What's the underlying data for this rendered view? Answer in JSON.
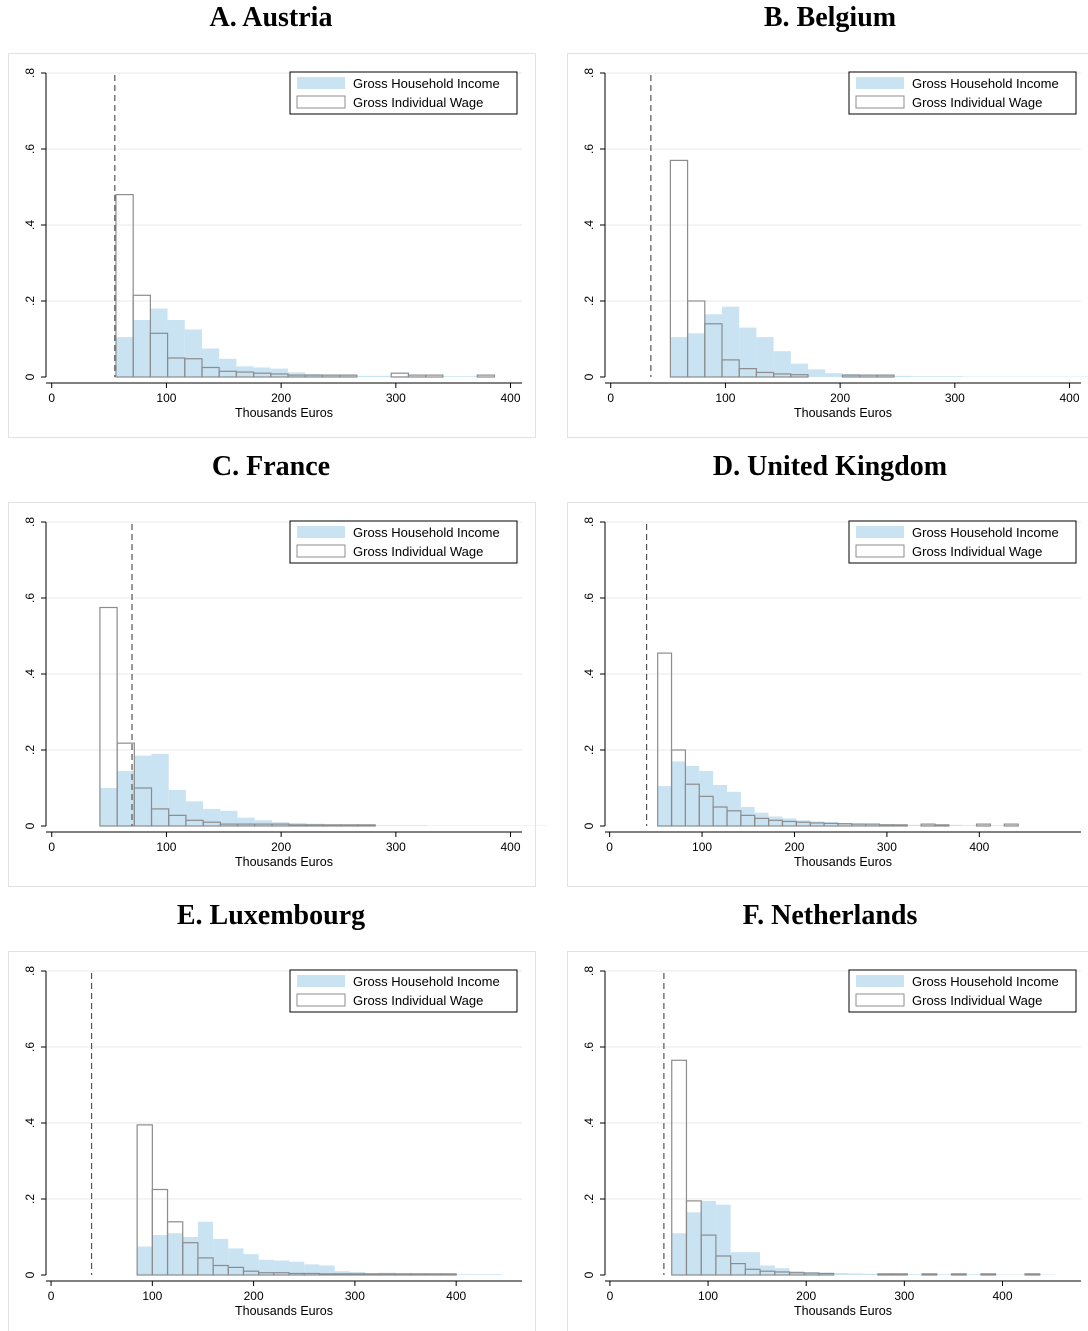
{
  "colors": {
    "household_fill": "#c9e3f3",
    "wage_stroke": "#8c8c8c",
    "grid": "#eaeaea",
    "frame": "#e2e2e2",
    "threshold": "#555555"
  },
  "chart_data": [
    {
      "type": "bar",
      "title": "A. Austria",
      "xlabel": "Thousands Euros",
      "ylabel": "",
      "xlim": [
        -5,
        410
      ],
      "ylim": [
        0,
        0.8
      ],
      "xticks": [
        0,
        100,
        200,
        300,
        400
      ],
      "xtick_labels": [
        "0",
        "100",
        "200",
        "300",
        "400"
      ],
      "yticks": [
        0,
        0.2,
        0.4,
        0.6,
        0.8
      ],
      "ytick_labels": [
        "0",
        ".2",
        ".4",
        ".6",
        ".8"
      ],
      "grid": true,
      "legend_position": "top-right",
      "threshold": 55,
      "bin_start": 56,
      "bin_width": 15,
      "series": [
        {
          "name": "Gross Household Income",
          "style": "filled",
          "values": [
            0.105,
            0.15,
            0.18,
            0.15,
            0.125,
            0.075,
            0.048,
            0.028,
            0.025,
            0.022,
            0.012,
            0.008,
            0.006,
            0.005,
            0.003,
            0.003,
            0.002,
            0.002,
            0.001,
            0.002,
            0.002
          ]
        },
        {
          "name": "Gross Individual Wage",
          "style": "outline",
          "values": [
            0.48,
            0.215,
            0.115,
            0.05,
            0.048,
            0.025,
            0.015,
            0.013,
            0.01,
            0.008,
            0.005,
            0.005,
            0.005,
            0.005,
            0,
            0,
            0.01,
            0.005,
            0.005,
            0,
            0,
            0.005
          ]
        }
      ]
    },
    {
      "type": "bar",
      "title": "B. Belgium",
      "xlabel": "Thousands Euros",
      "ylabel": "",
      "xlim": [
        -5,
        410
      ],
      "ylim": [
        0,
        0.8
      ],
      "xticks": [
        0,
        100,
        200,
        300,
        400
      ],
      "xtick_labels": [
        "0",
        "100",
        "200",
        "300",
        "400"
      ],
      "yticks": [
        0,
        0.2,
        0.4,
        0.6,
        0.8
      ],
      "ytick_labels": [
        "0",
        ".2",
        ".4",
        ".6",
        ".8"
      ],
      "grid": true,
      "legend_position": "top-right",
      "threshold": 35,
      "bin_start": 52,
      "bin_width": 15,
      "series": [
        {
          "name": "Gross Household Income",
          "style": "filled",
          "values": [
            0.105,
            0.115,
            0.165,
            0.185,
            0.13,
            0.105,
            0.068,
            0.035,
            0.02,
            0.01,
            0.008,
            0.006,
            0.005,
            0.003,
            0.002,
            0.002,
            0.002,
            0.001,
            0.001,
            0.001,
            0.001,
            0.001,
            0.001,
            0.001,
            0.001,
            0.001,
            0.001,
            0.001,
            0.001,
            0.004
          ]
        },
        {
          "name": "Gross Individual Wage",
          "style": "outline",
          "values": [
            0.57,
            0.2,
            0.14,
            0.045,
            0.022,
            0.012,
            0.008,
            0.006,
            0,
            0,
            0.005,
            0.005,
            0.005
          ]
        }
      ]
    },
    {
      "type": "bar",
      "title": "C. France",
      "xlabel": "Thousands Euros",
      "ylabel": "",
      "xlim": [
        -5,
        410
      ],
      "ylim": [
        0,
        0.8
      ],
      "xticks": [
        0,
        100,
        200,
        300,
        400
      ],
      "xtick_labels": [
        "0",
        "100",
        "200",
        "300",
        "400"
      ],
      "yticks": [
        0,
        0.2,
        0.4,
        0.6,
        0.8
      ],
      "ytick_labels": [
        "0",
        ".2",
        ".4",
        ".6",
        ".8"
      ],
      "grid": true,
      "legend_position": "top-right",
      "threshold": 70,
      "bin_start": 42,
      "bin_width": 15,
      "series": [
        {
          "name": "Gross Household Income",
          "style": "filled",
          "values": [
            0.1,
            0.145,
            0.185,
            0.19,
            0.095,
            0.065,
            0.045,
            0.04,
            0.022,
            0.015,
            0.01,
            0.008,
            0.006,
            0.004,
            0.003,
            0.003,
            0.002,
            0.002,
            0.002,
            0.001,
            0.001,
            0.001,
            0.001,
            0.001,
            0.001,
            0.001
          ]
        },
        {
          "name": "Gross Individual Wage",
          "style": "outline",
          "values": [
            0.575,
            0.218,
            0.1,
            0.045,
            0.028,
            0.015,
            0.01,
            0.005,
            0.005,
            0.005,
            0.005,
            0.003,
            0.003,
            0.003,
            0.003,
            0.003
          ]
        }
      ]
    },
    {
      "type": "bar",
      "title": "D. United Kingdom",
      "xlabel": "Thousands Euros",
      "ylabel": "",
      "xlim": [
        -5,
        510
      ],
      "ylim": [
        0,
        0.8
      ],
      "xticks": [
        0,
        100,
        200,
        300,
        400
      ],
      "xtick_labels": [
        "0",
        "100",
        "200",
        "300",
        "400"
      ],
      "yticks": [
        0,
        0.2,
        0.4,
        0.6,
        0.8
      ],
      "ytick_labels": [
        "0",
        ".2",
        ".4",
        ".6",
        ".8"
      ],
      "grid": true,
      "legend_position": "top-right",
      "threshold": 40,
      "bin_start": 52,
      "bin_width": 15,
      "series": [
        {
          "name": "Gross Household Income",
          "style": "filled",
          "values": [
            0.105,
            0.17,
            0.158,
            0.145,
            0.108,
            0.09,
            0.05,
            0.035,
            0.025,
            0.02,
            0.015,
            0.012,
            0.01,
            0.008,
            0.007,
            0.006,
            0.005,
            0.004,
            0.003,
            0.003,
            0.003,
            0.003,
            0.002,
            0.002,
            0.002,
            0.002
          ]
        },
        {
          "name": "Gross Individual Wage",
          "style": "outline",
          "values": [
            0.455,
            0.2,
            0.11,
            0.078,
            0.05,
            0.04,
            0.028,
            0.02,
            0.015,
            0.012,
            0.01,
            0.008,
            0.007,
            0.006,
            0.005,
            0.005,
            0.003,
            0.003,
            0,
            0.005,
            0.003,
            0,
            0,
            0.005,
            0,
            0.005
          ]
        }
      ]
    },
    {
      "type": "bar",
      "title": "E. Luxembourg",
      "xlabel": "Thousands Euros",
      "ylabel": "",
      "xlim": [
        -5,
        465
      ],
      "ylim": [
        0,
        0.8
      ],
      "xticks": [
        0,
        100,
        200,
        300,
        400
      ],
      "xtick_labels": [
        "0",
        "100",
        "200",
        "300",
        "400"
      ],
      "yticks": [
        0,
        0.2,
        0.4,
        0.6,
        0.8
      ],
      "ytick_labels": [
        "0",
        ".2",
        ".4",
        ".6",
        ".8"
      ],
      "grid": true,
      "legend_position": "top-right",
      "threshold": 40,
      "bin_start": 85,
      "bin_width": 15,
      "series": [
        {
          "name": "Gross Household Income",
          "style": "filled",
          "values": [
            0.075,
            0.105,
            0.11,
            0.1,
            0.14,
            0.095,
            0.07,
            0.055,
            0.04,
            0.038,
            0.035,
            0.028,
            0.025,
            0.01,
            0.008,
            0.005,
            0.006,
            0.004,
            0.004,
            0.003,
            0.002,
            0.002,
            0.002,
            0.002
          ]
        },
        {
          "name": "Gross Individual Wage",
          "style": "outline",
          "values": [
            0.395,
            0.225,
            0.14,
            0.085,
            0.045,
            0.025,
            0.02,
            0.01,
            0.006,
            0.006,
            0.004,
            0.004,
            0.003,
            0.003,
            0.003,
            0.003,
            0.003,
            0.003,
            0.003,
            0.003,
            0.003
          ]
        }
      ]
    },
    {
      "type": "bar",
      "title": "F. Netherlands",
      "xlabel": "Thousands Euros",
      "ylabel": "",
      "xlim": [
        -5,
        480
      ],
      "ylim": [
        0,
        0.8
      ],
      "xticks": [
        0,
        100,
        200,
        300,
        400
      ],
      "xtick_labels": [
        "0",
        "100",
        "200",
        "300",
        "400"
      ],
      "yticks": [
        0,
        0.2,
        0.4,
        0.6,
        0.8
      ],
      "ytick_labels": [
        "0",
        ".2",
        ".4",
        ".6",
        ".8"
      ],
      "grid": true,
      "legend_position": "top-right",
      "threshold": 55,
      "bin_start": 63,
      "bin_width": 15,
      "series": [
        {
          "name": "Gross Household Income",
          "style": "filled",
          "values": [
            0.11,
            0.165,
            0.195,
            0.185,
            0.06,
            0.06,
            0.025,
            0.018,
            0.01,
            0.008,
            0.006,
            0.005,
            0.004,
            0.003,
            0.003,
            0.002,
            0.002,
            0.002,
            0.002,
            0.002,
            0.002,
            0.002,
            0.001,
            0.001,
            0.001,
            0.001
          ]
        },
        {
          "name": "Gross Individual Wage",
          "style": "outline",
          "values": [
            0.565,
            0.195,
            0.105,
            0.05,
            0.03,
            0.015,
            0.01,
            0.008,
            0.006,
            0.005,
            0.004,
            0,
            0,
            0,
            0.003,
            0.003,
            0,
            0.003,
            0,
            0.003,
            0,
            0.003,
            0,
            0,
            0.003
          ]
        }
      ]
    }
  ]
}
